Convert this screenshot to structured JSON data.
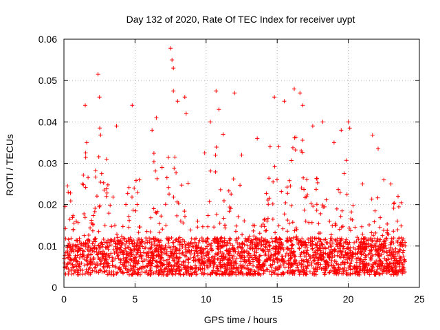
{
  "chart_data": {
    "type": "scatter",
    "title": "Day 132 of 2020, Rate Of TEC Index for receiver uypt",
    "xlabel": "GPS time / hours",
    "ylabel": "ROTI / TECUs",
    "xlim": [
      0,
      25
    ],
    "ylim": [
      0,
      0.06
    ],
    "x_ticks": [
      "0",
      "5",
      "10",
      "15",
      "20",
      "25"
    ],
    "y_ticks": [
      "0",
      "0.01",
      "0.02",
      "0.03",
      "0.04",
      "0.05",
      "0.06"
    ],
    "grid": true,
    "marker": "+",
    "color": "#ff0000",
    "series": [
      {
        "name": "ROTI",
        "note": "dense scatter; representative peak points listed, background population generated around 0.003-0.02",
        "points": [
          [
            0.0,
            0.007
          ],
          [
            0.3,
            0.023
          ],
          [
            1.5,
            0.044
          ],
          [
            1.6,
            0.035
          ],
          [
            2.4,
            0.0515
          ],
          [
            2.5,
            0.046
          ],
          [
            3.0,
            0.031
          ],
          [
            3.7,
            0.039
          ],
          [
            4.8,
            0.044
          ],
          [
            5.3,
            0.026
          ],
          [
            6.2,
            0.038
          ],
          [
            6.5,
            0.041
          ],
          [
            6.9,
            0.029
          ],
          [
            7.5,
            0.0578
          ],
          [
            7.6,
            0.055
          ],
          [
            7.7,
            0.053
          ],
          [
            7.7,
            0.0475
          ],
          [
            8.0,
            0.045
          ],
          [
            8.5,
            0.046
          ],
          [
            8.6,
            0.042
          ],
          [
            9.9,
            0.0325
          ],
          [
            10.3,
            0.04
          ],
          [
            10.7,
            0.0475
          ],
          [
            10.9,
            0.043
          ],
          [
            11.2,
            0.037
          ],
          [
            12.0,
            0.047
          ],
          [
            12.5,
            0.032
          ],
          [
            13.6,
            0.036
          ],
          [
            14.5,
            0.034
          ],
          [
            14.8,
            0.046
          ],
          [
            15.1,
            0.034
          ],
          [
            15.5,
            0.045
          ],
          [
            16.2,
            0.048
          ],
          [
            16.6,
            0.047
          ],
          [
            16.8,
            0.044
          ],
          [
            17.5,
            0.039
          ],
          [
            18.2,
            0.04
          ],
          [
            19.0,
            0.035
          ],
          [
            19.5,
            0.038
          ],
          [
            20.0,
            0.04
          ],
          [
            20.1,
            0.0385
          ],
          [
            21.0,
            0.025
          ],
          [
            21.7,
            0.0368
          ],
          [
            22.1,
            0.0335
          ],
          [
            22.5,
            0.026
          ],
          [
            23.0,
            0.025
          ],
          [
            23.5,
            0.022
          ],
          [
            24.0,
            0.01
          ]
        ]
      }
    ]
  }
}
